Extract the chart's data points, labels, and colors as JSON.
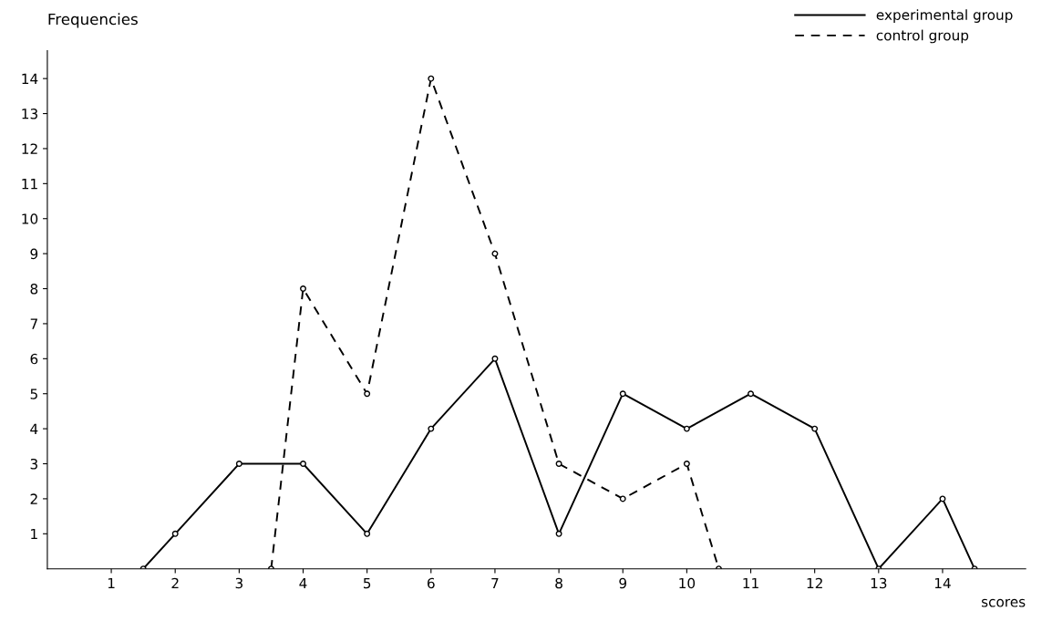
{
  "chart_data": {
    "type": "line",
    "xlabel": "scores",
    "ylabel": "Frequencies",
    "series": [
      {
        "name": "experimental group",
        "color": "#000000",
        "line_style": "solid",
        "x": [
          1.5,
          2,
          3,
          4,
          5,
          6,
          7,
          8,
          9,
          10,
          11,
          12,
          13,
          14,
          14.5
        ],
        "values": [
          0,
          1,
          3,
          3,
          1,
          4,
          6,
          1,
          5,
          4,
          5,
          4,
          0,
          2,
          0
        ]
      },
      {
        "name": "control group",
        "color": "#000000",
        "line_style": "dashed",
        "x": [
          3.5,
          4,
          5,
          6,
          7,
          8,
          9,
          10,
          10.5
        ],
        "values": [
          0,
          8,
          5,
          14,
          9,
          3,
          2,
          3,
          0
        ]
      }
    ],
    "xlim": [
      0,
      15.3
    ],
    "ylim": [
      0,
      14.8
    ],
    "xticks": [
      1,
      2,
      3,
      4,
      5,
      6,
      7,
      8,
      9,
      10,
      11,
      12,
      13,
      14
    ],
    "yticks": [
      1,
      2,
      3,
      4,
      5,
      6,
      7,
      8,
      9,
      10,
      11,
      12,
      13,
      14
    ],
    "marker": "circle",
    "grid": false,
    "legend": "top right"
  }
}
